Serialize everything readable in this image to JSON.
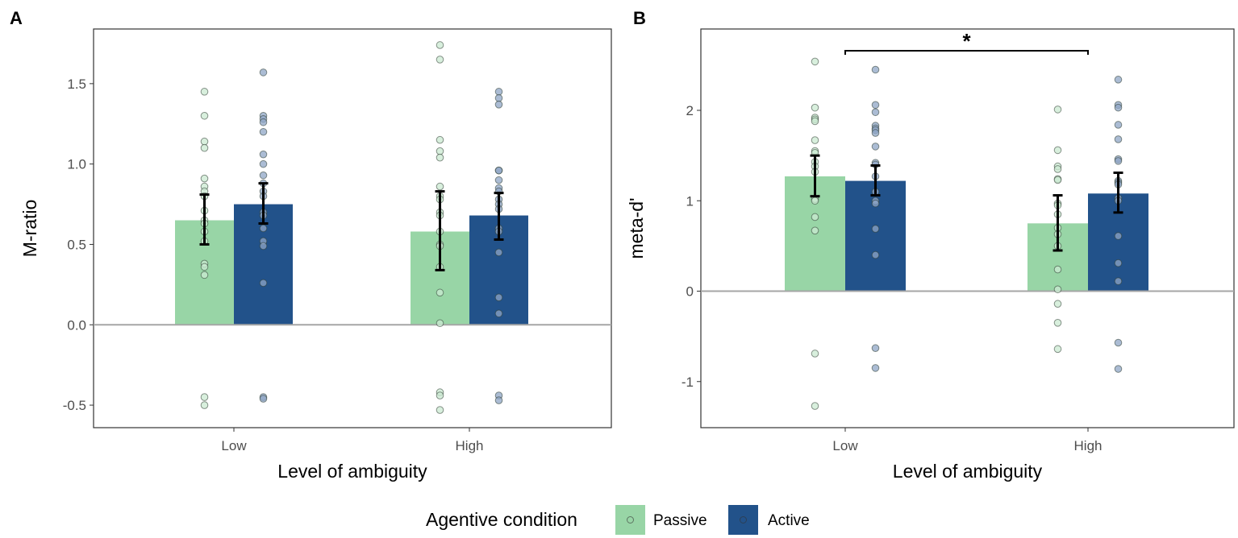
{
  "colors": {
    "passive": "#98D5A6",
    "active": "#22528A",
    "passive_point": "#cbe9d2",
    "active_point": "#8fa5c5",
    "zero_line": "#a6a6a6"
  },
  "legend": {
    "title": "Agentive condition",
    "entries": [
      "Passive",
      "Active"
    ],
    "placement": "bottom"
  },
  "chart_data": [
    {
      "type": "bar",
      "panel": "A",
      "xlabel": "Level of ambiguity",
      "ylabel": "M-ratio",
      "categories": [
        "Low",
        "High"
      ],
      "ylim": [
        -0.64,
        1.84
      ],
      "yticks": [
        -0.5,
        0.0,
        0.5,
        1.0,
        1.5
      ],
      "ytick_labels": [
        "-0.5",
        "0.0",
        "0.5",
        "1.0",
        "1.5"
      ],
      "grid": false,
      "series": [
        {
          "name": "Passive",
          "values": [
            0.65,
            0.58
          ],
          "err_low": [
            0.5,
            0.34
          ],
          "err_high": [
            0.81,
            0.83
          ],
          "points": [
            [
              1.45,
              1.3,
              1.14,
              1.1,
              0.91,
              0.86,
              0.83,
              0.8,
              0.71,
              0.65,
              0.63,
              0.58,
              0.52,
              0.38,
              0.36,
              0.31,
              -0.45,
              -0.5
            ],
            [
              1.74,
              1.65,
              1.15,
              1.08,
              1.04,
              0.86,
              0.8,
              0.78,
              0.7,
              0.68,
              0.58,
              0.5,
              0.49,
              0.36,
              0.2,
              0.01,
              -0.42,
              -0.44,
              -0.53
            ]
          ]
        },
        {
          "name": "Active",
          "values": [
            0.75,
            0.68
          ],
          "err_low": [
            0.63,
            0.53
          ],
          "err_high": [
            0.88,
            0.82
          ],
          "points": [
            [
              1.57,
              1.3,
              1.28,
              1.26,
              1.2,
              1.06,
              1.0,
              0.93,
              0.88,
              0.83,
              0.8,
              0.7,
              0.68,
              0.6,
              0.52,
              0.49,
              0.26,
              -0.45,
              -0.46
            ],
            [
              1.45,
              1.41,
              1.37,
              0.96,
              0.96,
              0.9,
              0.85,
              0.83,
              0.78,
              0.75,
              0.72,
              0.6,
              0.58,
              0.45,
              0.17,
              0.07,
              -0.44,
              -0.47
            ]
          ]
        }
      ]
    },
    {
      "type": "bar",
      "panel": "B",
      "xlabel": "Level of ambiguity",
      "ylabel": "meta-d'",
      "categories": [
        "Low",
        "High"
      ],
      "ylim": [
        -1.51,
        2.9
      ],
      "yticks": [
        -1,
        0,
        1,
        2
      ],
      "ytick_labels": [
        "-1",
        "0",
        "1",
        "2"
      ],
      "grid": false,
      "annotation": {
        "text": "*",
        "from": "Low",
        "to": "High",
        "y": 2.66
      },
      "series": [
        {
          "name": "Passive",
          "values": [
            1.27,
            0.75
          ],
          "err_low": [
            1.05,
            0.45
          ],
          "err_high": [
            1.5,
            1.06
          ],
          "points": [
            [
              2.54,
              2.03,
              1.92,
              1.9,
              1.88,
              1.67,
              1.55,
              1.53,
              1.43,
              1.38,
              1.32,
              1.02,
              1.0,
              0.82,
              0.67,
              -0.69,
              -1.27
            ],
            [
              2.01,
              1.56,
              1.38,
              1.35,
              1.24,
              1.23,
              0.97,
              0.95,
              0.85,
              0.7,
              0.63,
              0.5,
              0.24,
              0.02,
              -0.14,
              -0.35,
              -0.64
            ]
          ]
        },
        {
          "name": "Active",
          "values": [
            1.22,
            1.08
          ],
          "err_low": [
            1.06,
            0.87
          ],
          "err_high": [
            1.39,
            1.31
          ],
          "points": [
            [
              2.45,
              2.06,
              1.98,
              1.83,
              1.8,
              1.78,
              1.75,
              1.6,
              1.42,
              1.4,
              1.27,
              1.1,
              1.0,
              0.97,
              0.69,
              0.4,
              -0.63,
              -0.85
            ],
            [
              2.34,
              2.06,
              2.03,
              1.84,
              1.68,
              1.46,
              1.44,
              1.22,
              1.2,
              1.18,
              1.03,
              1.0,
              0.61,
              0.31,
              0.11,
              -0.57,
              -0.86
            ]
          ]
        }
      ]
    }
  ]
}
